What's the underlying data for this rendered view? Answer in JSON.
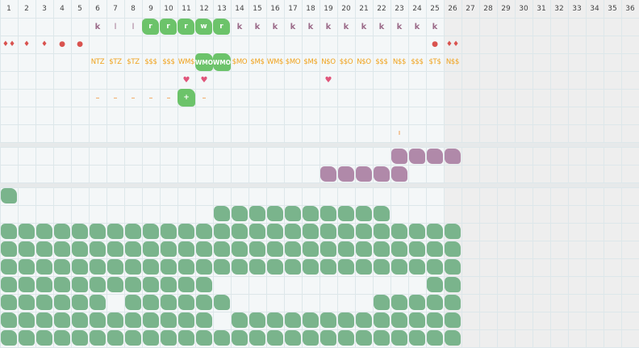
{
  "columns": [
    "1",
    "2",
    "3",
    "4",
    "5",
    "6",
    "7",
    "8",
    "9",
    "10",
    "11",
    "12",
    "13",
    "14",
    "15",
    "16",
    "17",
    "18",
    "19",
    "20",
    "21",
    "22",
    "23",
    "24",
    "25",
    "26",
    "27",
    "28",
    "29",
    "30",
    "31",
    "32",
    "33",
    "34",
    "35",
    "36"
  ],
  "row_k": [
    "",
    "",
    "",
    "",
    "",
    "k",
    "l",
    "l",
    "r",
    "r",
    "r",
    "w",
    "r",
    "k",
    "k",
    "k",
    "k",
    "k",
    "k",
    "k",
    "k",
    "k",
    "k",
    "k",
    "k"
  ],
  "row_drops": [
    "♦♦",
    "♦",
    "♦",
    "●",
    "●",
    "",
    "",
    "",
    "",
    "",
    "",
    "",
    "",
    "",
    "",
    "",
    "",
    "",
    "",
    "",
    "",
    "",
    "",
    "",
    "●",
    "♦♦"
  ],
  "row_money": [
    "",
    "",
    "",
    "",
    "",
    "NTZ",
    "$TZ",
    "$TZ",
    "$$$",
    "$$$",
    "WM$",
    "WMO",
    "WMO",
    "$MO",
    "$M$",
    "WM$",
    "$MO",
    "$M$",
    "N$O",
    "$$O",
    "N$O",
    "$$$",
    "N$$",
    "$$$",
    "$T$",
    "N$$"
  ],
  "row_hearts_cols": [
    "11",
    "12",
    "19"
  ],
  "heart_glyph": "♥",
  "dash_glyph": "–",
  "plus_glyph": "+",
  "tick_glyph": "ı",
  "colors": {
    "green_pill": "#6cc36a",
    "purple_block": "#b089a9",
    "green_block": "#7ab48c",
    "gray_zone": "#eeeeee"
  }
}
